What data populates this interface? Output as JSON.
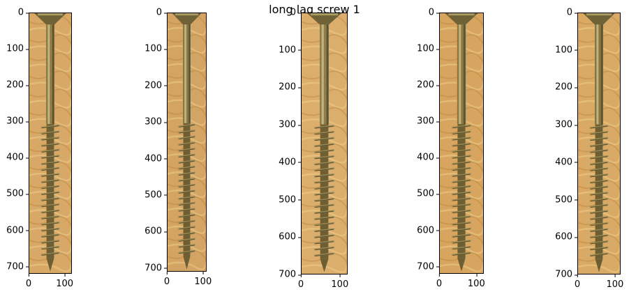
{
  "figure": {
    "title": "long lag screw 1"
  },
  "panels": [
    {
      "yticks": [
        "0",
        "100",
        "200",
        "300",
        "400",
        "500",
        "600",
        "700"
      ],
      "xticks": [
        "0",
        "100"
      ],
      "ymax": 720,
      "xmax": 120,
      "colors": {
        "wood": "#d8a867",
        "screw": "#8a7a48"
      }
    },
    {
      "yticks": [
        "0",
        "100",
        "200",
        "300",
        "400",
        "500",
        "600",
        "700"
      ],
      "xticks": [
        "0",
        "100"
      ],
      "ymax": 710,
      "xmax": 110,
      "colors": {
        "wood": "#d3a463",
        "screw": "#88784a"
      }
    },
    {
      "yticks": [
        "0",
        "100",
        "200",
        "300",
        "400",
        "500",
        "600",
        "700"
      ],
      "xticks": [
        "0",
        "100"
      ],
      "ymax": 700,
      "xmax": 120,
      "colors": {
        "wood": "#dcae6d",
        "screw": "#8e7c4a"
      }
    },
    {
      "yticks": [
        "0",
        "100",
        "200",
        "300",
        "400",
        "500",
        "600",
        "700"
      ],
      "xticks": [
        "0",
        "100"
      ],
      "ymax": 720,
      "xmax": 120,
      "colors": {
        "wood": "#d7a560",
        "screw": "#8a7848"
      }
    },
    {
      "yticks": [
        "0",
        "100",
        "200",
        "300",
        "400",
        "500",
        "600",
        "700"
      ],
      "xticks": [
        "0",
        "100"
      ],
      "ymax": 700,
      "xmax": 115,
      "colors": {
        "wood": "#d9aa66",
        "screw": "#857546"
      }
    }
  ]
}
